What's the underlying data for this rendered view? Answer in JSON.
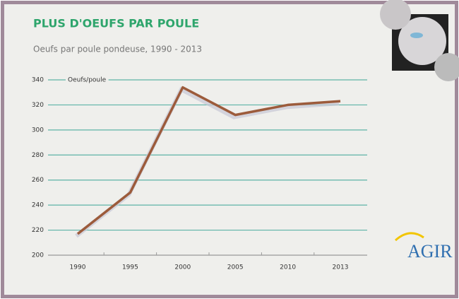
{
  "chart_data": {
    "type": "line",
    "title": "PLUS D'OEUFS PAR POULE",
    "subtitle": "Oeufs par poule pondeuse, 1990 - 2013",
    "ylabel": "Oeufs/poule",
    "categories": [
      "1990",
      "1995",
      "2000",
      "2005",
      "2010",
      "2013"
    ],
    "series": [
      {
        "name": "Oeufs/poule",
        "color": "#9c5b3b",
        "values": [
          217,
          250,
          334,
          312,
          320,
          323
        ]
      }
    ],
    "ylim": [
      200,
      340
    ],
    "yticks": [
      200,
      220,
      240,
      260,
      280,
      300,
      320,
      340
    ],
    "grid": true,
    "grid_color": "#5db3a6",
    "logo": "AGIR"
  }
}
